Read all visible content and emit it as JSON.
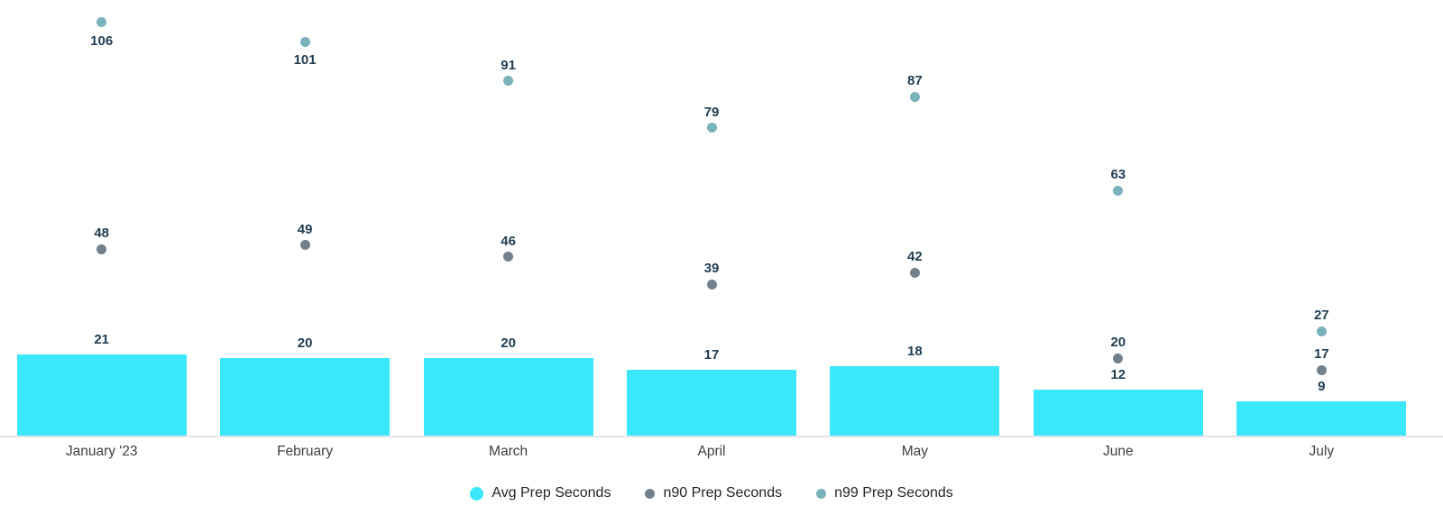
{
  "chart_data": {
    "type": "bar",
    "title": "",
    "xlabel": "",
    "ylabel": "",
    "categories": [
      "January '23",
      "February",
      "March",
      "April",
      "May",
      "June",
      "July"
    ],
    "series": [
      {
        "name": "Avg Prep Seconds",
        "type": "bar",
        "color": "#3BE8FB",
        "values": [
          21,
          20,
          20,
          17,
          18,
          12,
          9
        ]
      },
      {
        "name": "n90 Prep Seconds",
        "type": "scatter",
        "color": "#71808C",
        "values": [
          48,
          49,
          46,
          39,
          42,
          20,
          17
        ]
      },
      {
        "name": "n99 Prep Seconds",
        "type": "scatter",
        "color": "#79B2BB",
        "values": [
          106,
          101,
          91,
          79,
          87,
          63,
          27
        ]
      }
    ],
    "ylim": [
      0,
      111.7
    ],
    "grid": false,
    "y_axis_visible": false,
    "legend_position": "bottom",
    "value_labels_shown": true,
    "value_label_color": "#1F3D52",
    "axis_label_color": "#3C4045",
    "axis_line_color": "#E4E4E9",
    "background_color": "#FFFFFF"
  }
}
